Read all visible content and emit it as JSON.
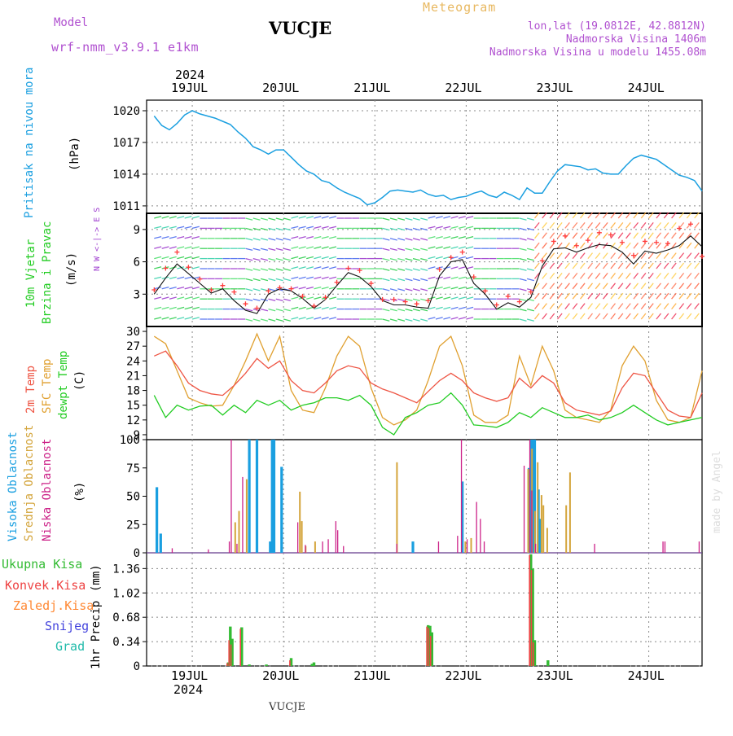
{
  "header": {
    "model_label": "Model",
    "model_name": "wrf-nmm_v3.9.1  e1km",
    "station": "VUCJE",
    "meteogram": "Meteogram",
    "coords": "lon,lat (19.0812E, 42.8812N)",
    "alt1": "Nadmorska Visina 1406m",
    "alt2": "Nadmorska Visina u modelu 1455.08m",
    "year_top": "2024",
    "year_bottom": "2024",
    "footer_station": "VUCJE",
    "credit": "made by Angel"
  },
  "colors": {
    "pressure": "#1a9fe0",
    "wind_speed": "#111111",
    "wind_gust": "#ff3b3b",
    "temp2m": "#ee5544",
    "sfc_temp": "#e0a030",
    "dewpoint": "#22cc22",
    "cloud_high": "#1a9fe0",
    "cloud_mid": "#d4a53c",
    "cloud_low": "#cc2288",
    "precip_total": "#33bb33",
    "precip_conv": "#ee4444",
    "precip_frz": "#ff8833",
    "precip_snow": "#4444dd",
    "precip_grad": "#22bbaa",
    "grid": "#888888"
  },
  "chart_data": [
    {
      "type": "line",
      "panel": "pressure",
      "ylabel_main": "Pritisak na nivou mora",
      "ylabel_unit": "(hPa)",
      "yticks": [
        1011,
        1014,
        1017,
        1020
      ],
      "ylim": [
        1010.3,
        1021.0
      ],
      "x_days": [
        "19JUL",
        "20JUL",
        "21JUL",
        "22JUL",
        "23JUL",
        "24JUL"
      ],
      "x": [
        0,
        2,
        4,
        6,
        8,
        10,
        12,
        14,
        16,
        18,
        20,
        22,
        24,
        26,
        28,
        30,
        32,
        34,
        36,
        38,
        40,
        42,
        44,
        46,
        48,
        50,
        52,
        54,
        56,
        58,
        60,
        62,
        64,
        66,
        68,
        70,
        72,
        74,
        76,
        78,
        80,
        82,
        84,
        86,
        88,
        90,
        92,
        94,
        96,
        98,
        100,
        102,
        104,
        106,
        108,
        110,
        112,
        114,
        116,
        118,
        120,
        122,
        124,
        126,
        128,
        130,
        132,
        134,
        136,
        138,
        140,
        142,
        144
      ],
      "values": [
        1019.5,
        1018.6,
        1018.2,
        1018.8,
        1019.6,
        1020.0,
        1019.7,
        1019.5,
        1019.3,
        1019.0,
        1018.7,
        1018.0,
        1017.4,
        1016.6,
        1016.3,
        1015.9,
        1016.3,
        1016.3,
        1015.6,
        1014.9,
        1014.3,
        1014.0,
        1013.4,
        1013.2,
        1012.7,
        1012.3,
        1012.0,
        1011.7,
        1011.1,
        1011.3,
        1011.8,
        1012.4,
        1012.5,
        1012.4,
        1012.3,
        1012.5,
        1012.1,
        1011.9,
        1012.0,
        1011.6,
        1011.8,
        1011.9,
        1012.2,
        1012.4,
        1012.0,
        1011.8,
        1012.3,
        1012.0,
        1011.6,
        1012.7,
        1012.2,
        1012.2,
        1013.3,
        1014.3,
        1014.9,
        1014.8,
        1014.7,
        1014.4,
        1014.5,
        1014.1,
        1014.0,
        1014.0,
        1014.8,
        1015.5,
        1015.8,
        1015.6,
        1015.4,
        1014.9,
        1014.4,
        1013.9,
        1013.7,
        1013.4,
        1012.4
      ]
    },
    {
      "type": "line",
      "panel": "wind",
      "ylabel_main": "10m Vjetar",
      "ylabel_sub": "Brzina i Pravac",
      "ylabel_unit": "(m/s)",
      "compass": "N  W <-|-> E  S",
      "yticks": [
        3,
        6,
        9
      ],
      "ylim": [
        0,
        10.5
      ],
      "x": [
        0,
        3,
        6,
        9,
        12,
        15,
        18,
        21,
        24,
        27,
        30,
        33,
        36,
        39,
        42,
        45,
        48,
        51,
        54,
        57,
        60,
        63,
        66,
        69,
        72,
        75,
        78,
        81,
        84,
        87,
        90,
        93,
        96,
        99,
        102,
        105,
        108,
        111,
        114,
        117,
        120,
        123,
        126,
        129,
        132,
        135,
        138,
        141,
        144
      ],
      "series": [
        {
          "name": "speed",
          "values": [
            3.0,
            4.5,
            5.8,
            4.9,
            4.0,
            3.1,
            3.5,
            2.4,
            1.5,
            1.2,
            3.0,
            3.5,
            3.3,
            2.6,
            1.7,
            2.5,
            3.8,
            5.0,
            4.6,
            3.7,
            2.4,
            2.0,
            2.0,
            1.8,
            1.7,
            4.7,
            6.0,
            6.2,
            4.0,
            3.0,
            1.6,
            2.2,
            1.8,
            2.7,
            5.6,
            7.2,
            7.3,
            6.9,
            7.3,
            7.6,
            7.5,
            6.9,
            5.8,
            7.0,
            6.8,
            7.1,
            7.5,
            8.4,
            7.4
          ]
        },
        {
          "name": "gust",
          "values": [
            3.4,
            5.4,
            6.9,
            5.5,
            4.4,
            3.4,
            3.8,
            3.2,
            2.1,
            1.7,
            3.3,
            3.6,
            3.5,
            2.8,
            1.9,
            2.7,
            4.1,
            5.4,
            5.2,
            4.0,
            2.5,
            2.5,
            2.3,
            2.1,
            2.4,
            5.3,
            6.4,
            6.9,
            4.6,
            3.3,
            2.0,
            2.8,
            2.3,
            3.2,
            6.1,
            7.9,
            8.4,
            7.5,
            8.0,
            8.7,
            8.5,
            7.8,
            6.6,
            7.9,
            7.8,
            7.7,
            9.1,
            9.5,
            6.5
          ]
        }
      ]
    },
    {
      "type": "line",
      "panel": "temperature",
      "ylabel_t2": "2m Temp",
      "ylabel_sfc": "SFC Temp",
      "ylabel_dew": "dewpt Temp",
      "ylabel_unit": "(C)",
      "yticks": [
        9,
        12,
        15,
        18,
        21,
        24,
        27,
        30
      ],
      "ylim": [
        8,
        31
      ],
      "x": [
        0,
        3,
        6,
        9,
        12,
        15,
        18,
        21,
        24,
        27,
        30,
        33,
        36,
        39,
        42,
        45,
        48,
        51,
        54,
        57,
        60,
        63,
        66,
        69,
        72,
        75,
        78,
        81,
        84,
        87,
        90,
        93,
        96,
        99,
        102,
        105,
        108,
        111,
        114,
        117,
        120,
        123,
        126,
        129,
        132,
        135,
        138,
        141,
        144
      ],
      "series": [
        {
          "name": "2m Temp",
          "values": [
            25.0,
            26.0,
            23.0,
            19.5,
            18.0,
            17.3,
            17.0,
            19.0,
            21.5,
            24.5,
            22.5,
            24.0,
            20.0,
            18.0,
            17.5,
            19.5,
            22.0,
            23.0,
            22.5,
            19.5,
            18.3,
            17.5,
            16.5,
            15.5,
            17.8,
            20.0,
            21.5,
            20.0,
            17.5,
            16.5,
            15.8,
            16.5,
            20.5,
            18.5,
            21.0,
            19.5,
            15.5,
            14.0,
            13.5,
            13.0,
            13.8,
            18.5,
            21.5,
            21.0,
            17.5,
            14.0,
            12.8,
            12.5,
            17.5
          ]
        },
        {
          "name": "SFC Temp",
          "values": [
            29.0,
            27.5,
            22.0,
            16.5,
            15.5,
            14.8,
            15.0,
            19.0,
            24.0,
            29.5,
            24.0,
            29.0,
            18.0,
            14.0,
            13.5,
            18.5,
            25.0,
            29.0,
            27.0,
            18.5,
            12.5,
            11.0,
            12.0,
            14.0,
            20.0,
            27.0,
            29.0,
            23.0,
            13.0,
            11.5,
            11.5,
            13.0,
            25.0,
            19.0,
            27.0,
            22.0,
            14.0,
            12.5,
            12.0,
            11.5,
            14.0,
            23.0,
            27.0,
            24.0,
            16.0,
            12.0,
            11.5,
            12.5,
            22.0
          ]
        },
        {
          "name": "dewpt Temp",
          "values": [
            17.0,
            12.5,
            15.0,
            14.0,
            14.8,
            15.0,
            13.0,
            15.0,
            13.5,
            16.0,
            15.0,
            16.0,
            14.0,
            15.0,
            15.5,
            16.5,
            16.5,
            16.0,
            17.0,
            15.0,
            10.5,
            9.0,
            12.5,
            13.5,
            15.0,
            15.5,
            17.5,
            15.0,
            11.0,
            10.8,
            10.5,
            11.5,
            13.5,
            12.5,
            14.5,
            13.5,
            12.5,
            12.5,
            13.0,
            12.0,
            12.5,
            13.5,
            15.0,
            13.5,
            12.0,
            11.0,
            11.5,
            12.0,
            12.5
          ]
        }
      ]
    },
    {
      "type": "bar",
      "panel": "cloud",
      "ylabel_high": "Visoka Oblacnost",
      "ylabel_mid": "Srednja Oblacnost",
      "ylabel_low": "Niska Oblacnost",
      "ylabel_unit": "(%)",
      "yticks": [
        0,
        25,
        50,
        75,
        100
      ],
      "ylim": [
        0,
        100
      ],
      "series": [
        {
          "name": "Visoka Oblacnost",
          "x": [
            0.7,
            1.7,
            25.0,
            27.0,
            30.5,
            31.0,
            31.5,
            33.5,
            68.0,
            81.0,
            98.5,
            99.0,
            99.5,
            100.0,
            101.0,
            101.5
          ],
          "values": [
            58,
            17,
            100,
            100,
            10,
            100,
            100,
            76,
            10,
            63,
            75,
            100,
            100,
            100,
            56,
            30
          ]
        },
        {
          "name": "Srednja Oblacnost",
          "x": [
            21.0,
            22.0,
            24.0,
            38.0,
            38.5,
            39.5,
            42.0,
            63.5,
            81.5,
            83.0,
            98.0,
            99.0,
            99.8,
            100.5,
            101.5,
            102.0,
            103.0,
            108.0,
            109.0
          ],
          "values": [
            27,
            37,
            65,
            54,
            28,
            6,
            10,
            80,
            10,
            13,
            74,
            92,
            37,
            80,
            51,
            42,
            22,
            42,
            71
          ]
        },
        {
          "name": "Niska Oblacnost",
          "x": [
            5.0,
            14.5,
            20.0,
            20.5,
            22.0,
            23.5,
            38.0,
            40.0,
            44.5,
            46.0,
            48.0,
            48.5,
            50.0,
            64.0,
            75.0,
            80.0,
            81.0,
            82.5,
            85.0,
            86.0,
            87.0,
            97.5,
            99.0,
            99.5,
            100.5,
            116.0,
            134.0,
            134.5,
            143.5
          ],
          "values": [
            4,
            3,
            10,
            100,
            8,
            67,
            27,
            7,
            10,
            12,
            28,
            20,
            6,
            8,
            10,
            15,
            100,
            12,
            45,
            30,
            10,
            77,
            100,
            55,
            8,
            8,
            10,
            10,
            10
          ]
        }
      ]
    },
    {
      "type": "bar",
      "panel": "precip",
      "legend_total": "Ukupna Kisa",
      "legend_conv": "Konvek.Kisa",
      "legend_frz": "Zaledj.Kisa",
      "legend_snow": "Snijeg",
      "legend_grad": "Grad",
      "ylabel_main": "1hr Precip",
      "ylabel_unit": "(mm)",
      "yticks": [
        0,
        0.34,
        0.68,
        1.02,
        1.36
      ],
      "ylim": [
        0,
        1.58
      ],
      "series": [
        {
          "name": "Ukupna Kisa",
          "x": [
            19.5,
            20.0,
            20.5,
            23.0,
            25.0,
            29.5,
            36.0,
            41.5,
            42.0,
            72.0,
            72.5,
            73.0,
            99.0,
            99.5,
            100.0,
            103.5
          ],
          "values": [
            0.05,
            0.55,
            0.38,
            0.54,
            0.02,
            0.02,
            0.11,
            0.03,
            0.05,
            0.57,
            0.56,
            0.47,
            1.56,
            1.36,
            0.36,
            0.08
          ]
        },
        {
          "name": "Konvek.Kisa",
          "x": [
            19.5,
            20.0,
            20.5,
            23.0,
            36.0,
            72.0,
            72.5,
            73.0,
            99.0,
            99.5,
            100.0
          ],
          "values": [
            0.04,
            0.36,
            0.3,
            0.52,
            0.08,
            0.55,
            0.53,
            0.42,
            1.55,
            1.34,
            0.33
          ]
        }
      ]
    }
  ]
}
